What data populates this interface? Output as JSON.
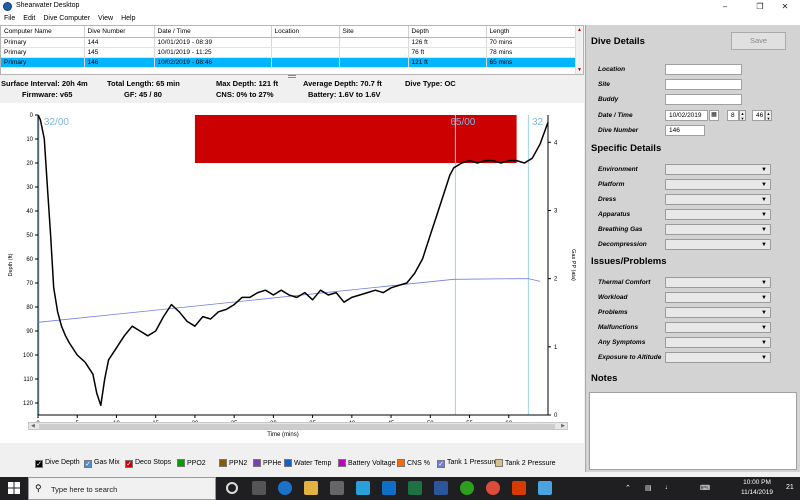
{
  "window": {
    "title": "Shearwater Desktop"
  },
  "menu": [
    "File",
    "Edit",
    "Dive Computer",
    "View",
    "Help"
  ],
  "grid": {
    "columns": [
      "Computer Name",
      "Dive Number",
      "Date / Time",
      "Location",
      "Site",
      "Depth",
      "Length"
    ],
    "rows": [
      [
        "Primary",
        "144",
        "10/01/2019 - 08:39",
        "",
        "",
        "126 ft",
        "70 mins"
      ],
      [
        "Primary",
        "145",
        "10/01/2019 - 11:25",
        "",
        "",
        "76 ft",
        "78 mins"
      ],
      [
        "Primary",
        "146",
        "10/02/2019 - 08:46",
        "",
        "",
        "121 ft",
        "65 mins"
      ]
    ],
    "selected_row": 2
  },
  "summary": {
    "surface_interval": "Surface Interval: 20h 4m",
    "total_length": "Total Length: 65 min",
    "max_depth": "Max Depth: 121 ft",
    "average_depth": "Average Depth: 70.7 ft",
    "dive_type": "Dive Type: OC",
    "firmware": "Firmware: v65",
    "gf": "GF: 45 / 80",
    "cns": "CNS: 0% to 27%",
    "battery": "Battery: 1.6V to 1.6V"
  },
  "chart_data": {
    "type": "line",
    "xlabel": "Time (mins)",
    "ylabel": "Depth (ft)",
    "y2label": "Gas PP (ata)",
    "xlim": [
      0,
      65
    ],
    "ylim": [
      0,
      125
    ],
    "y2lim": [
      0,
      4.4
    ],
    "x_ticks": [
      0,
      5,
      10,
      15,
      20,
      25,
      30,
      35,
      40,
      45,
      50,
      55,
      60
    ],
    "y_ticks": [
      0,
      10,
      20,
      30,
      40,
      50,
      60,
      70,
      80,
      90,
      100,
      110,
      120
    ],
    "y2_ticks": [
      0,
      1,
      2,
      3,
      4
    ],
    "gas_labels": [
      {
        "text": "32/00",
        "x": 0.5
      },
      {
        "text": "65/00",
        "x": 52.3
      },
      {
        "text": "32",
        "x": 62.7
      }
    ],
    "gas_switch_lines": [
      53.2,
      62.5
    ],
    "deco_block": {
      "x_start": 20,
      "x_end": 61,
      "depth_top": 0,
      "depth_bottom": 20
    },
    "series": [
      {
        "name": "Dive Depth",
        "color": "#000000",
        "x": [
          0,
          0.3,
          0.8,
          1.2,
          1.6,
          2,
          2.5,
          3,
          3.5,
          4,
          5,
          6,
          7,
          7.5,
          8,
          8.5,
          9,
          10,
          11,
          12,
          13,
          14,
          15,
          16,
          17,
          18,
          19,
          20,
          21,
          22,
          23,
          24,
          25,
          26,
          27,
          28,
          29,
          30,
          31,
          32,
          33,
          34,
          35,
          36,
          37,
          38,
          39,
          40,
          41,
          42,
          43,
          44,
          45,
          46,
          47,
          48,
          49,
          50,
          51,
          52,
          52.5,
          53,
          54,
          55,
          56,
          57,
          58,
          59,
          60,
          61,
          62,
          63,
          64,
          65
        ],
        "y": [
          0,
          2,
          10,
          30,
          50,
          72,
          82,
          88,
          92,
          95,
          100,
          103,
          108,
          116,
          121,
          110,
          102,
          97,
          92,
          88,
          90,
          92,
          90,
          84,
          79,
          82,
          86,
          88,
          84,
          85,
          82,
          81,
          79,
          76,
          76,
          74,
          73,
          75,
          73,
          75,
          76,
          74,
          77,
          73,
          75,
          74,
          78,
          76,
          75,
          74,
          73,
          74,
          72,
          71,
          70,
          66,
          60,
          50,
          40,
          30,
          25,
          22,
          20,
          19,
          20,
          19,
          19,
          20,
          19,
          19,
          20,
          18,
          12,
          3
        ]
      },
      {
        "name": "Tank 1 Pressure",
        "color": "#6f7de0",
        "x": [
          0,
          53,
          62.5,
          64
        ],
        "y_ppo2": [
          1.36,
          1.99,
          2.0,
          1.96
        ]
      }
    ]
  },
  "legend": [
    {
      "label": "Dive Depth",
      "checked": true,
      "color": "#000000"
    },
    {
      "label": "Gas Mix",
      "checked": true,
      "color": "#4a90d9"
    },
    {
      "label": "Deco Stops",
      "checked": true,
      "color": "#cc0000"
    },
    {
      "label": "PPO2",
      "checked": false,
      "color": "#00a000"
    },
    {
      "label": "PPN2",
      "checked": false,
      "color": "#8a5a00"
    },
    {
      "label": "PPHe",
      "checked": false,
      "color": "#7a3fb0"
    },
    {
      "label": "Water Temp",
      "checked": false,
      "color": "#1060d0"
    },
    {
      "label": "Battery Voltage",
      "checked": false,
      "color": "#c000c0"
    },
    {
      "label": "CNS %",
      "checked": false,
      "color": "#ff6a00"
    },
    {
      "label": "Tank 1 Pressure",
      "checked": true,
      "color": "#6f7de0"
    },
    {
      "label": "Tank 2 Pressure",
      "checked": false,
      "color": "#d6c38a"
    }
  ],
  "panel": {
    "save_label": "Save",
    "dive_details": "Dive Details",
    "location_label": "Location",
    "site_label": "Site",
    "buddy_label": "Buddy",
    "datetime_label": "Date / Time",
    "date_value": "10/02/2019",
    "hour_value": "8",
    "minute_value": "46",
    "divenumber_label": "Dive Number",
    "divenumber_value": "146",
    "specific_details": "Specific Details",
    "specific": [
      "Environment",
      "Platform",
      "Dress",
      "Apparatus",
      "Breathing Gas",
      "Decompression"
    ],
    "issues_problems": "Issues/Problems",
    "issues": [
      "Thermal Comfort",
      "Workload",
      "Problems",
      "Malfunctions",
      "Any Symptoms",
      "Exposure to Altitude"
    ],
    "notes": "Notes"
  },
  "taskbar": {
    "search_placeholder": "Type here to search",
    "time": "10:00 PM",
    "date": "11/14/2019",
    "notification_count": "21"
  }
}
